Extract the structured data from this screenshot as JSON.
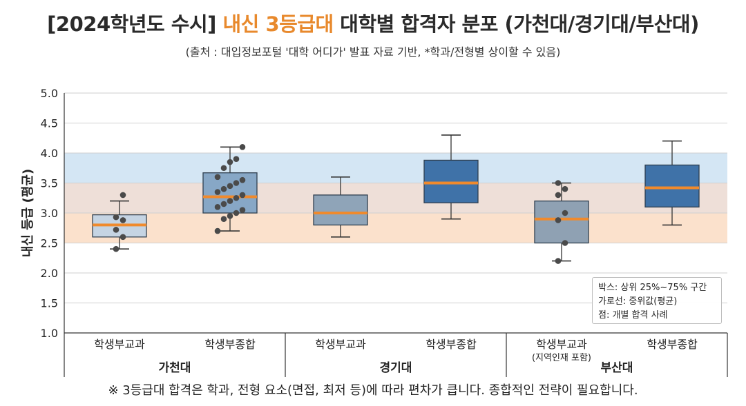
{
  "title": {
    "prefix": "[2024학년도 수시] ",
    "highlight": "내신 3등급대",
    "suffix": " 대학별 합격자 분포 (가천대/경기대/부산대)",
    "highlight_color": "#e8892c"
  },
  "subtitle": "(출처 : 대입정보포털 '대학 어디가' 발표 자료 기반, *학과/전형별 상이할 수 있음)",
  "footnote": "※ 3등급대 합격은 학과, 전형 요소(면접, 최저 등)에 따라 편차가 큽니다. 종합적인 전략이 필요합니다.",
  "legend": {
    "box": "박스: 상위 25%~75% 구간",
    "line": "가로선: 중위값(평균)",
    "point": "점: 개별 합격 사례"
  },
  "chart_data": {
    "type": "box",
    "ylabel": "내신 등급 (평균)",
    "ylim": [
      1.0,
      5.0
    ],
    "yticks": [
      "1.0",
      "1.5",
      "2.0",
      "2.5",
      "3.0",
      "3.5",
      "4.0",
      "4.5",
      "5.0"
    ],
    "bands": [
      {
        "from": 2.5,
        "to": 3.0,
        "color": "#fbe1cc"
      },
      {
        "from": 3.0,
        "to": 3.5,
        "color": "#eedfd8"
      },
      {
        "from": 3.5,
        "to": 4.0,
        "color": "#d4e6f4"
      }
    ],
    "groups": [
      {
        "name": "가천대",
        "note": ""
      },
      {
        "name": "경기대",
        "note": ""
      },
      {
        "name": "부산대",
        "note": ""
      }
    ],
    "categories": [
      {
        "label": "학생부교과",
        "sublabel": "",
        "group": 0,
        "whisker_low": 2.4,
        "q1": 2.6,
        "median": 2.8,
        "q3": 2.97,
        "whisker_high": 3.2,
        "color": "#c5d4e3",
        "points": [
          2.4,
          2.6,
          2.72,
          2.88,
          2.93,
          3.3
        ]
      },
      {
        "label": "학생부종합",
        "sublabel": "",
        "group": 0,
        "whisker_low": 2.7,
        "q1": 3.0,
        "median": 3.27,
        "q3": 3.67,
        "whisker_high": 4.1,
        "color": "#87a7c6",
        "points": [
          2.7,
          2.9,
          2.95,
          3.0,
          3.05,
          3.1,
          3.15,
          3.2,
          3.25,
          3.3,
          3.35,
          3.4,
          3.45,
          3.5,
          3.55,
          3.6,
          3.75,
          3.85,
          3.9,
          4.1
        ]
      },
      {
        "label": "학생부교과",
        "sublabel": "",
        "group": 1,
        "whisker_low": 2.6,
        "q1": 2.8,
        "median": 3.0,
        "q3": 3.3,
        "whisker_high": 3.6,
        "color": "#8fa4b8",
        "points": []
      },
      {
        "label": "학생부종합",
        "sublabel": "",
        "group": 1,
        "whisker_low": 2.9,
        "q1": 3.17,
        "median": 3.5,
        "q3": 3.88,
        "whisker_high": 4.3,
        "color": "#3f72a8",
        "points": []
      },
      {
        "label": "학생부교과",
        "sublabel": "(지역인재 포함)",
        "group": 2,
        "whisker_low": 2.2,
        "q1": 2.5,
        "median": 2.9,
        "q3": 3.2,
        "whisker_high": 3.5,
        "color": "#8fa1b3",
        "points": [
          2.2,
          2.5,
          2.88,
          3.0,
          3.3,
          3.4,
          3.5
        ]
      },
      {
        "label": "학생부종합",
        "sublabel": "",
        "group": 2,
        "whisker_low": 2.8,
        "q1": 3.1,
        "median": 3.42,
        "q3": 3.8,
        "whisker_high": 4.2,
        "color": "#3f72a8",
        "points": []
      }
    ],
    "median_color": "#f08a2c",
    "point_color": "#4a4a4a",
    "grid": true
  }
}
